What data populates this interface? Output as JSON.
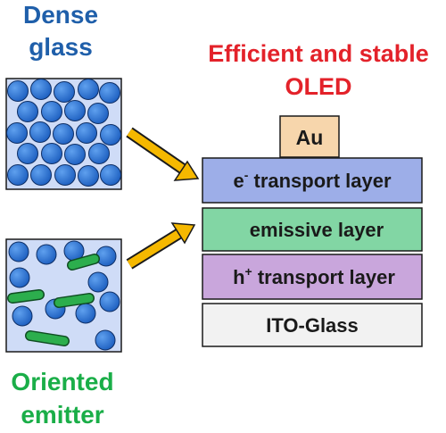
{
  "labels": {
    "dense_glass": [
      "Dense",
      "glass"
    ],
    "oriented_emitter": [
      "Oriented",
      "emitter"
    ],
    "title": [
      "Efficient and stable",
      "OLED"
    ]
  },
  "device": {
    "electrode": "Au",
    "layers": [
      {
        "prefix": "e",
        "sup": "-",
        "text": " transport layer",
        "color": "#9daee8"
      },
      {
        "prefix": "",
        "sup": "",
        "text": "emissive layer",
        "color": "#82d6a4"
      },
      {
        "prefix": "h",
        "sup": "+",
        "text": " transport layer",
        "color": "#c9a6dc"
      },
      {
        "prefix": "",
        "sup": "",
        "text": "ITO-Glass",
        "color": "#f2f2f2"
      }
    ]
  },
  "colors": {
    "blue_text": "#1f5faa",
    "green_text": "#1aae48",
    "red_text": "#e3222a",
    "sphere": "#2f78d6",
    "rod": "#2cae4d",
    "box_fill": "#cfdcf7",
    "electrode_fill": "#f7d6ac",
    "arrow": "#f5b800"
  }
}
